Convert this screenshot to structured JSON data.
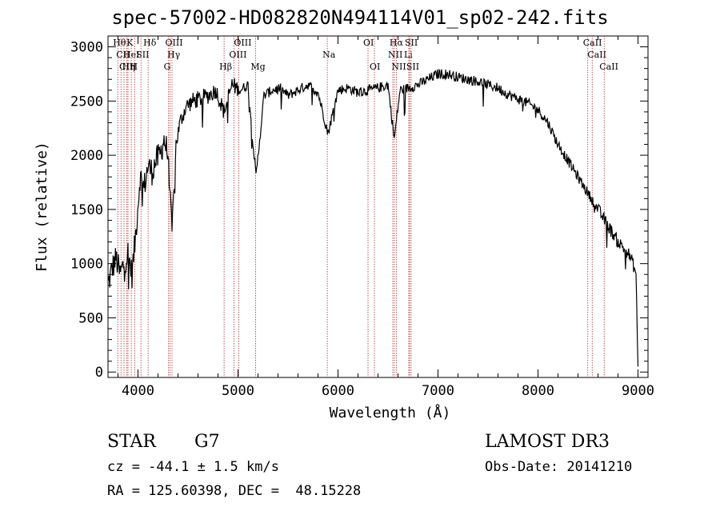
{
  "chart_data": {
    "type": "line",
    "title": "spec-57002-HD082820N494114V01_sp02-242.fits",
    "xlabel": "Wavelength (Å)",
    "ylabel": "Flux (relative)",
    "xlim": [
      3700,
      9100
    ],
    "ylim": [
      -50,
      3100
    ],
    "xticks": [
      4000,
      5000,
      6000,
      7000,
      8000,
      9000
    ],
    "yticks": [
      0,
      500,
      1000,
      1500,
      2000,
      2500,
      3000
    ],
    "series": [
      {
        "name": "flux",
        "x": [
          3700,
          3740,
          3780,
          3820,
          3860,
          3900,
          3940,
          3980,
          4020,
          4060,
          4100,
          4140,
          4180,
          4220,
          4260,
          4300,
          4340,
          4380,
          4420,
          4480,
          4550,
          4620,
          4700,
          4780,
          4860,
          4940,
          5020,
          5100,
          5180,
          5260,
          5340,
          5420,
          5500,
          5600,
          5700,
          5800,
          5900,
          6000,
          6100,
          6200,
          6300,
          6400,
          6500,
          6563,
          6620,
          6700,
          6800,
          6900,
          7000,
          7100,
          7200,
          7300,
          7400,
          7500,
          7600,
          7700,
          7800,
          7900,
          8000,
          8100,
          8200,
          8300,
          8400,
          8500,
          8600,
          8700,
          8800,
          8850,
          8900,
          8950,
          8980,
          9000
        ],
        "y": [
          800,
          950,
          1050,
          900,
          1000,
          1100,
          900,
          1300,
          1800,
          1700,
          1900,
          1850,
          1950,
          2000,
          2150,
          2000,
          1300,
          2100,
          2300,
          2450,
          2500,
          2520,
          2550,
          2600,
          2400,
          2650,
          2600,
          2650,
          1800,
          2550,
          2600,
          2620,
          2550,
          2600,
          2650,
          2580,
          2200,
          2600,
          2620,
          2580,
          2600,
          2620,
          2650,
          2150,
          2600,
          2620,
          2650,
          2700,
          2750,
          2750,
          2720,
          2700,
          2680,
          2650,
          2620,
          2560,
          2520,
          2480,
          2420,
          2300,
          2100,
          1950,
          1800,
          1650,
          1500,
          1350,
          1200,
          1150,
          1100,
          1000,
          900,
          50
        ]
      }
    ],
    "line_markers": [
      {
        "label": "Hθ",
        "x": 3798,
        "row": 1
      },
      {
        "label": "CII",
        "x": 3830,
        "row": 2
      },
      {
        "label": "CIII",
        "x": 3860,
        "row": 3
      },
      {
        "label": "Hη",
        "x": 3889,
        "row": 3
      },
      {
        "label": "HeI",
        "x": 3900,
        "row": 2
      },
      {
        "label": "K",
        "x": 3933,
        "row": 1
      },
      {
        "label": "H",
        "x": 3968,
        "row": 3
      },
      {
        "label": "SII",
        "x": 4030,
        "row": 2
      },
      {
        "label": "Hδ",
        "x": 4101,
        "row": 1
      },
      {
        "label": "OIII",
        "x": 4320,
        "row": 1
      },
      {
        "label": "Hγ",
        "x": 4340,
        "row": 2
      },
      {
        "label": "G",
        "x": 4305,
        "row": 3
      },
      {
        "label": "Hβ",
        "x": 4861,
        "row": 3
      },
      {
        "label": "OIII",
        "x": 4959,
        "row": 2
      },
      {
        "label": "OIII",
        "x": 5007,
        "row": 1
      },
      {
        "label": "Mg",
        "x": 5175,
        "row": 3
      },
      {
        "label": "Na",
        "x": 5893,
        "row": 2
      },
      {
        "label": "OI",
        "x": 6300,
        "row": 1
      },
      {
        "label": "OI",
        "x": 6364,
        "row": 3
      },
      {
        "label": "Hα",
        "x": 6563,
        "row": 1
      },
      {
        "label": "NII",
        "x": 6548,
        "row": 2
      },
      {
        "label": "NII",
        "x": 6583,
        "row": 3
      },
      {
        "label": "SII",
        "x": 6716,
        "row": 1
      },
      {
        "label": "Li",
        "x": 6708,
        "row": 2
      },
      {
        "label": "SII",
        "x": 6731,
        "row": 3
      },
      {
        "label": "CaII",
        "x": 8498,
        "row": 1
      },
      {
        "label": "CaII",
        "x": 8542,
        "row": 2
      },
      {
        "label": "CaII",
        "x": 8662,
        "row": 3
      }
    ]
  },
  "info": {
    "object_class": "STAR",
    "subclass": "G7",
    "survey": "LAMOST DR3",
    "cz": "cz = -44.1 ± 1.5 km/s",
    "obs_date": "Obs-Date: 20141210",
    "coords": "RA = 125.60398, DEC =  48.15228"
  }
}
